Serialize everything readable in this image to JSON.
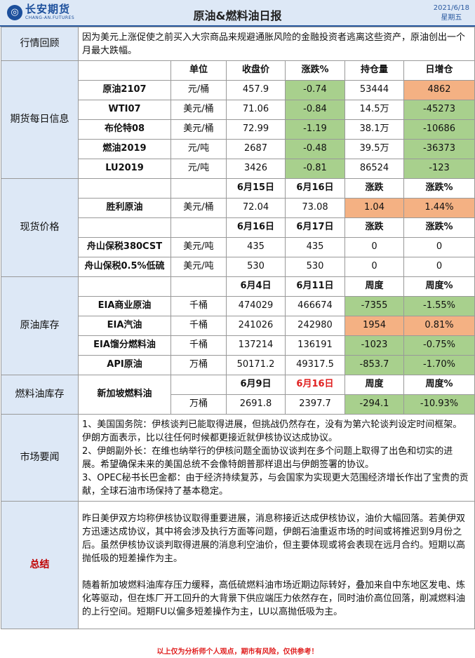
{
  "header": {
    "logo_cn": "长安期货",
    "logo_en": "CHANG-AN.FUTURES",
    "title": "原油&燃料油日报",
    "date": "2021/6/18",
    "weekday": "星期五"
  },
  "review": {
    "label": "行情回顾",
    "text": "因为美元上涨促使之前买入大宗商品来规避通胀风险的金融投资者逃离这些资产，原油创出一个月最大跌幅。"
  },
  "futures": {
    "label": "期货每日信息",
    "headers": [
      "单位",
      "收盘价",
      "涨跌%",
      "持仓量",
      "日增仓"
    ],
    "rows": [
      {
        "name": "原油2107",
        "unit": "元/桶",
        "close": "457.9",
        "chg": "-0.74",
        "oi": "53444",
        "add": "4862"
      },
      {
        "name": "WTI07",
        "unit": "美元/桶",
        "close": "71.06",
        "chg": "-0.84",
        "oi": "14.5万",
        "add": "-45273"
      },
      {
        "name": "布伦特08",
        "unit": "美元/桶",
        "close": "72.99",
        "chg": "-1.19",
        "oi": "38.1万",
        "add": "-10686"
      },
      {
        "name": "燃油2019",
        "unit": "元/吨",
        "close": "2687",
        "chg": "-0.48",
        "oi": "39.5万",
        "add": "-36373"
      },
      {
        "name": "LU2019",
        "unit": "元/吨",
        "close": "3426",
        "chg": "-0.81",
        "oi": "86524",
        "add": "-123"
      }
    ]
  },
  "spot": {
    "label": "现货价格",
    "header1": [
      "6月15日",
      "6月16日",
      "涨跌",
      "涨跌%"
    ],
    "row1": {
      "name": "胜利原油",
      "unit": "美元/桶",
      "d1": "72.04",
      "d2": "73.08",
      "chg": "1.04",
      "pct": "1.44%"
    },
    "header2": [
      "6月16日",
      "6月17日",
      "涨跌",
      "涨跌%"
    ],
    "rows2": [
      {
        "name": "舟山保税380CST",
        "unit": "美元/吨",
        "d1": "435",
        "d2": "435",
        "chg": "0",
        "pct": "0"
      },
      {
        "name": "舟山保税0.5%低硫",
        "unit": "美元/吨",
        "d1": "530",
        "d2": "530",
        "chg": "0",
        "pct": "0"
      }
    ]
  },
  "crude_inventory": {
    "label": "原油库存",
    "headers": [
      "6月4日",
      "6月11日",
      "周度",
      "周度%"
    ],
    "rows": [
      {
        "name": "EIA商业原油",
        "unit": "千桶",
        "d1": "474029",
        "d2": "466674",
        "chg": "-7355",
        "pct": "-1.55%"
      },
      {
        "name": "EIA汽油",
        "unit": "千桶",
        "d1": "241026",
        "d2": "242980",
        "chg": "1954",
        "pct": "0.81%"
      },
      {
        "name": "EIA馏分燃料油",
        "unit": "千桶",
        "d1": "137214",
        "d2": "136191",
        "chg": "-1023",
        "pct": "-0.75%"
      },
      {
        "name": "API原油",
        "unit": "万桶",
        "d1": "50171.2",
        "d2": "49317.5",
        "chg": "-853.7",
        "pct": "-1.70%"
      }
    ]
  },
  "fuel_inventory": {
    "label": "燃料油库存",
    "name": "新加坡燃料油",
    "headers": [
      "6月9日",
      "6月16日",
      "周度",
      "周度%"
    ],
    "row": {
      "unit": "万桶",
      "d1": "2691.8",
      "d2": "2397.7",
      "chg": "-294.1",
      "pct": "-10.93%"
    }
  },
  "market": {
    "label": "市场要闻",
    "items": [
      "1、美国国务院：伊核谈判已能取得进展，但挑战仍然存在，没有为第六轮谈判设定时间框架。伊朗方面表示，比以往任何时候都更接近就伊核协议达成协议。",
      "2、伊朗副外长：在维也纳举行的伊核问题全面协议谈判在多个问题上取得了出色和切实的进展。希望确保未来的美国总统不会像特朗普那样退出与伊朗签署的协议。",
      "3、OPEC秘书长巴金都：由于经济持续复苏，与会国家为实现更大范围经济增长作出了宝贵的贡献，全球石油市场保持了基本稳定。"
    ]
  },
  "summary": {
    "label": "总结",
    "p1": "昨日美伊双方均称伊核协议取得重要进展，消息称接近达成伊核协议，油价大幅回落。若美伊双方迅速达成协议，其中将会涉及执行方面等问题，伊朗石油重返市场的时间或将推迟到9月份之后。虽然伊核协议谈判取得进展的消息利空油价，但主要体现或将会表现在远月合约。短期以高抛低吸的短差操作为主。",
    "p2": "随着新加坡燃料油库存压力缓释，高低硫燃料油市场近期边际转好，叠加来自中东地区发电、炼化等驱动，但在炼厂开工回升的大背景下供应端压力依然存在，同时油价高位回落，削减燃料油的上行空间。短期FU以偏多短差操作为主，LU以高抛低吸为主。"
  },
  "footer": "以上仅为分析师个人观点，期市有风险，仅供参考！",
  "colors": {
    "accent": "#2b5aa0",
    "section_bg": "#dde8f6",
    "down_green": "#a8d08d",
    "up_orange": "#f4b183",
    "warn_red": "#e02020"
  }
}
